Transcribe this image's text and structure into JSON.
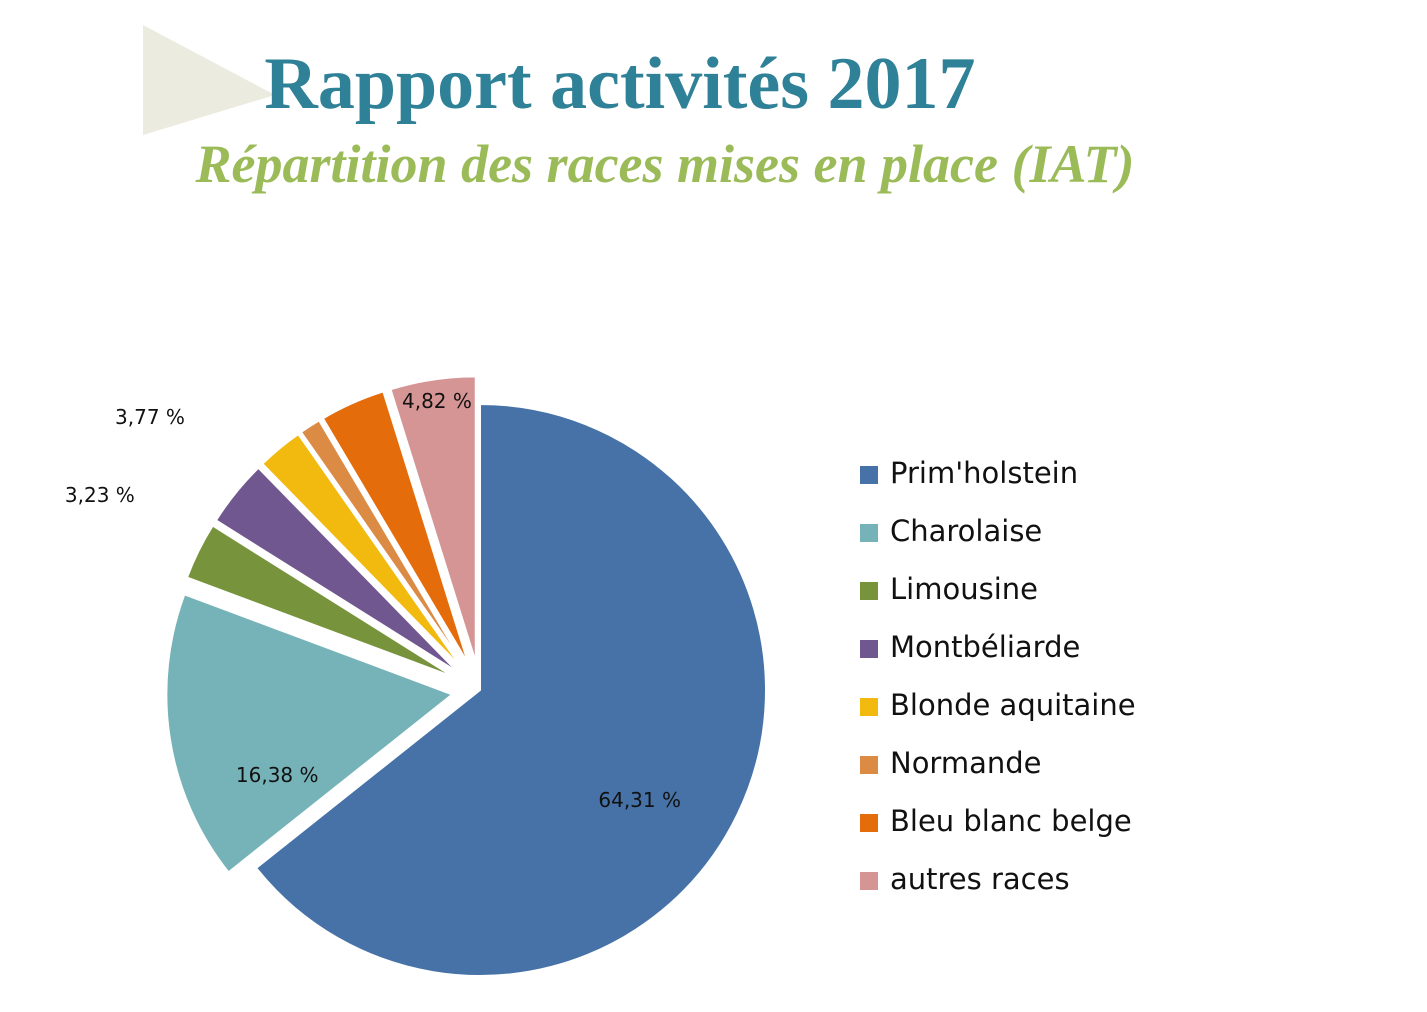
{
  "chart_data": {
    "type": "pie",
    "title": "Rapport activités 2017",
    "subtitle": "Répartition des races mises en place (IAT)",
    "categories": [
      "Prim'holstein",
      "Charolaise",
      "Limousine",
      "Montbéliarde",
      "Blonde aquitaine",
      "Normande",
      "Bleu blanc belge",
      "autres races"
    ],
    "values": [
      64.31,
      16.38,
      3.23,
      3.77,
      2.6,
      1.2,
      3.69,
      4.82
    ],
    "value_labels": [
      "64,31 %",
      "16,38 %",
      "3,23 %",
      "3,77 %",
      null,
      null,
      null,
      "4,82 %"
    ],
    "colors": [
      "#4672a8",
      "#76b3b8",
      "#77933c",
      "#71578f",
      "#f2b90f",
      "#dc8b45",
      "#e46c0a",
      "#d69595"
    ],
    "legend": "right"
  }
}
